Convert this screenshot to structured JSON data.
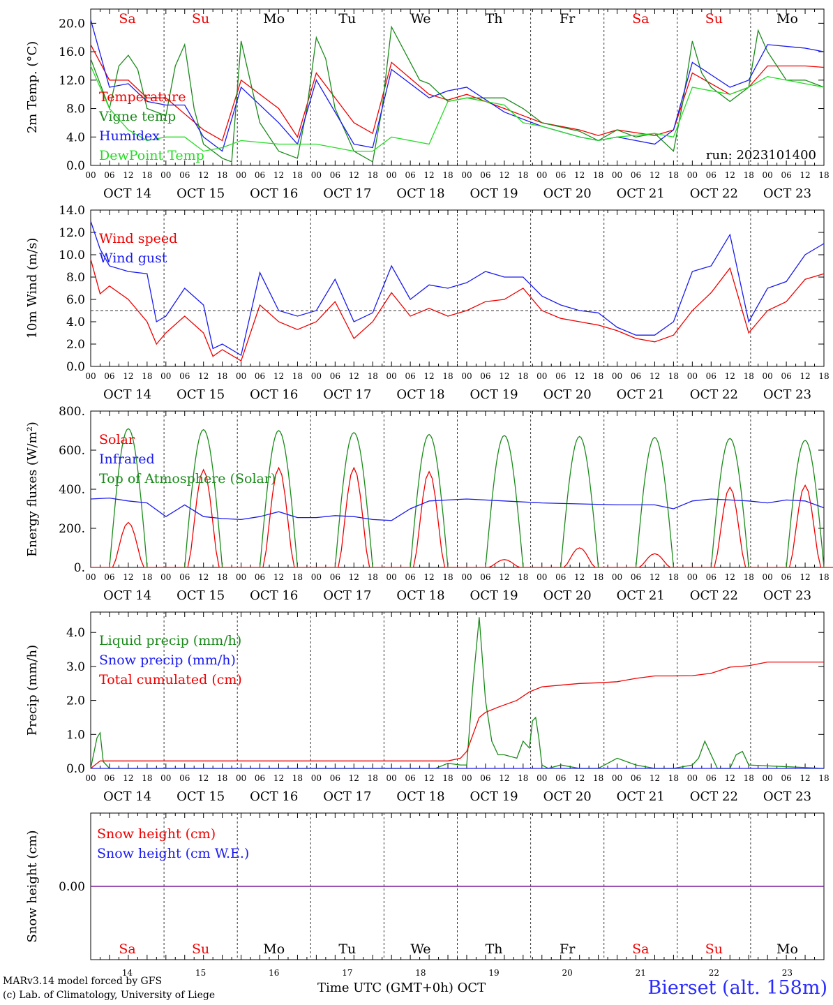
{
  "colors": {
    "red": "#ee0000",
    "green": "#1a8a1a",
    "blue": "#1a1aee",
    "lightgreen": "#22dd22",
    "purple": "#7a1a9a",
    "weekend": "#ee0000",
    "station": "#2b2bff"
  },
  "days": [
    "OCT 14",
    "OCT 15",
    "OCT 16",
    "OCT 17",
    "OCT 18",
    "OCT 19",
    "OCT 20",
    "OCT 21",
    "OCT 22",
    "OCT 23"
  ],
  "weekdays": [
    {
      "label": "Sa",
      "weekend": true
    },
    {
      "label": "Su",
      "weekend": true
    },
    {
      "label": "Mo",
      "weekend": false
    },
    {
      "label": "Tu",
      "weekend": false
    },
    {
      "label": "We",
      "weekend": false
    },
    {
      "label": "Th",
      "weekend": false
    },
    {
      "label": "Fr",
      "weekend": false
    },
    {
      "label": "Sa",
      "weekend": true
    },
    {
      "label": "Su",
      "weekend": true
    },
    {
      "label": "Mo",
      "weekend": false
    }
  ],
  "hour_ticks": [
    "00",
    "06",
    "12",
    "18"
  ],
  "footer_day_numbers": [
    "14",
    "15",
    "16",
    "17",
    "18",
    "19",
    "20",
    "21",
    "22",
    "23"
  ],
  "footer": {
    "credit1": "MARv3.14 model forced by GFS",
    "credit2": "(c) Lab. of Climatology, University of Liege",
    "xtitle": "Time UTC (GMT+0h) OCT",
    "station": "Bierset (alt. 158m)"
  },
  "chart_data": [
    {
      "type": "line",
      "ylabel": "2m Temp. (°C)",
      "ylim": [
        0,
        22
      ],
      "yticks": [
        "0.0",
        "4.0",
        "8.0",
        "12.0",
        "16.0",
        "20.0"
      ],
      "annotation": "run: 2023101400",
      "x_hours_start": 0,
      "series": [
        {
          "name": "Temperature",
          "color": "red",
          "x": [
            0,
            6,
            12,
            18,
            24,
            36,
            42,
            48,
            60,
            66,
            72,
            84,
            90,
            96,
            108,
            114,
            120,
            132,
            138,
            144,
            156,
            162,
            168,
            180,
            186,
            192,
            204,
            210,
            216,
            228,
            234
          ],
          "values": [
            17.0,
            12.0,
            12.0,
            9.5,
            9.5,
            5.0,
            3.5,
            12.0,
            8.0,
            4.0,
            13.0,
            6.0,
            4.5,
            14.5,
            10.0,
            9.2,
            10.0,
            8.0,
            7.0,
            6.0,
            5.0,
            4.2,
            5.0,
            4.2,
            5.0,
            13.0,
            10.0,
            11.0,
            14.0,
            14.0,
            13.8
          ]
        },
        {
          "name": "Vigne temp",
          "color": "green",
          "x": [
            0,
            6,
            9,
            12,
            15,
            18,
            24,
            27,
            30,
            33,
            36,
            42,
            45,
            48,
            54,
            60,
            66,
            69,
            72,
            75,
            78,
            84,
            90,
            93,
            96,
            105,
            108,
            114,
            120,
            132,
            138,
            144,
            156,
            162,
            168,
            174,
            180,
            186,
            189,
            192,
            195,
            198,
            204,
            210,
            213,
            216,
            222,
            228,
            234
          ],
          "values": [
            15.0,
            8.0,
            14.0,
            15.5,
            13.5,
            8.0,
            7.0,
            14.0,
            17.0,
            8.0,
            3.0,
            1.0,
            0.5,
            17.5,
            6.0,
            2.0,
            1.0,
            8.0,
            18.0,
            15.0,
            8.0,
            2.0,
            0.5,
            8.0,
            19.5,
            12.0,
            11.5,
            9.0,
            9.5,
            9.5,
            8.0,
            6.0,
            4.8,
            3.5,
            5.0,
            4.0,
            4.5,
            2.0,
            9.0,
            17.5,
            13.0,
            11.0,
            9.0,
            11.0,
            19.0,
            16.0,
            12.0,
            12.0,
            11.0
          ]
        },
        {
          "name": "Humidex",
          "color": "blue",
          "x": [
            0,
            6,
            12,
            18,
            24,
            30,
            36,
            42,
            48,
            60,
            66,
            72,
            84,
            90,
            96,
            108,
            114,
            120,
            132,
            138,
            144,
            156,
            162,
            168,
            180,
            186,
            192,
            204,
            210,
            216,
            228,
            234
          ],
          "values": [
            20.5,
            11.0,
            11.5,
            9.0,
            8.5,
            8.5,
            4.0,
            2.0,
            11.0,
            6.0,
            3.0,
            12.0,
            3.0,
            2.5,
            13.5,
            9.5,
            10.5,
            11.0,
            7.5,
            6.5,
            5.5,
            4.0,
            3.5,
            4.0,
            3.0,
            5.0,
            14.5,
            11.0,
            12.0,
            17.0,
            16.5,
            16.0
          ]
        },
        {
          "name": "DewPoint Temp",
          "color": "lightgreen",
          "x": [
            0,
            6,
            12,
            18,
            24,
            30,
            36,
            42,
            48,
            60,
            66,
            72,
            84,
            90,
            96,
            108,
            114,
            120,
            132,
            138,
            144,
            156,
            162,
            168,
            180,
            186,
            192,
            204,
            210,
            216,
            228,
            234
          ],
          "values": [
            14.0,
            8.0,
            5.0,
            3.5,
            4.0,
            4.0,
            2.0,
            2.5,
            3.5,
            3.0,
            3.0,
            3.0,
            2.0,
            2.0,
            4.0,
            3.0,
            9.0,
            9.5,
            8.5,
            6.0,
            5.5,
            4.0,
            3.5,
            4.0,
            4.5,
            4.0,
            11.0,
            10.0,
            11.0,
            12.5,
            11.5,
            11.0
          ]
        }
      ]
    },
    {
      "type": "line",
      "ylabel": "10m Wind (m/s)",
      "ylim": [
        0,
        14
      ],
      "yticks": [
        "0.0",
        "2.0",
        "4.0",
        "6.0",
        "8.0",
        "10.0",
        "12.0",
        "14.0"
      ],
      "hline": 5.0,
      "series": [
        {
          "name": "Wind speed",
          "color": "red",
          "x": [
            0,
            3,
            6,
            12,
            18,
            21,
            24,
            30,
            36,
            39,
            42,
            48,
            54,
            60,
            66,
            72,
            78,
            84,
            90,
            96,
            102,
            108,
            114,
            120,
            126,
            132,
            138,
            144,
            150,
            156,
            162,
            168,
            174,
            180,
            186,
            192,
            198,
            204,
            210,
            216,
            222,
            228,
            234
          ],
          "values": [
            9.6,
            6.5,
            7.2,
            6.0,
            4.0,
            2.0,
            3.0,
            4.5,
            3.0,
            0.9,
            1.5,
            0.5,
            5.5,
            4.0,
            3.3,
            4.0,
            5.8,
            2.5,
            4.0,
            6.6,
            4.5,
            5.2,
            4.5,
            5.0,
            5.8,
            6.0,
            7.0,
            5.0,
            4.3,
            4.0,
            3.7,
            3.2,
            2.5,
            2.2,
            2.8,
            5.0,
            6.6,
            8.8,
            3.0,
            5.0,
            5.8,
            7.8,
            8.3
          ]
        },
        {
          "name": "Wind gust",
          "color": "blue",
          "x": [
            0,
            3,
            6,
            12,
            18,
            21,
            24,
            30,
            36,
            39,
            42,
            48,
            54,
            60,
            66,
            72,
            78,
            84,
            90,
            96,
            102,
            108,
            114,
            120,
            126,
            132,
            138,
            144,
            150,
            156,
            162,
            168,
            174,
            180,
            186,
            192,
            198,
            204,
            210,
            216,
            222,
            228,
            234
          ],
          "values": [
            13.0,
            10.5,
            9.0,
            8.5,
            8.3,
            4.0,
            4.5,
            7.0,
            5.5,
            1.6,
            2.0,
            1.0,
            8.4,
            5.0,
            4.5,
            5.0,
            7.8,
            4.0,
            4.8,
            9.0,
            6.0,
            7.3,
            7.0,
            7.5,
            8.5,
            8.0,
            8.0,
            6.3,
            5.5,
            5.0,
            4.8,
            3.5,
            2.8,
            2.8,
            4.0,
            8.5,
            9.0,
            11.8,
            4.0,
            7.0,
            7.6,
            10.0,
            11.0
          ]
        }
      ]
    },
    {
      "type": "line",
      "ylabel": "Energy fluxes (W/m²)",
      "ylim": [
        0,
        800
      ],
      "yticks": [
        "0.",
        "200.",
        "400.",
        "600.",
        "800."
      ],
      "series": [
        {
          "name": "Solar",
          "color": "red",
          "peaks": [
            230,
            500,
            510,
            510,
            490,
            40,
            100,
            70,
            410,
            420
          ]
        },
        {
          "name": "Infrared",
          "color": "blue",
          "x": [
            0,
            6,
            12,
            18,
            24,
            30,
            36,
            42,
            48,
            54,
            60,
            66,
            72,
            78,
            84,
            90,
            96,
            102,
            108,
            114,
            120,
            132,
            144,
            156,
            168,
            180,
            186,
            192,
            198,
            204,
            210,
            216,
            222,
            228,
            234
          ],
          "values": [
            350,
            355,
            340,
            330,
            260,
            320,
            260,
            250,
            245,
            260,
            285,
            255,
            255,
            265,
            260,
            245,
            240,
            300,
            340,
            345,
            350,
            340,
            330,
            325,
            320,
            320,
            300,
            340,
            350,
            345,
            340,
            330,
            345,
            340,
            305
          ]
        },
        {
          "name": "Top of Atmosphere (Solar)",
          "color": "green",
          "peaks": [
            710,
            705,
            700,
            690,
            680,
            675,
            670,
            665,
            660,
            650
          ]
        }
      ]
    },
    {
      "type": "line",
      "ylabel": "Precip (mm/h)",
      "ylim": [
        0,
        4.6
      ],
      "yticks": [
        "0.0",
        "1.0",
        "2.0",
        "3.0",
        "4.0"
      ],
      "series": [
        {
          "name": "Liquid precip (mm/h)",
          "color": "green",
          "x": [
            0,
            2,
            3,
            4,
            6,
            110,
            114,
            118,
            120,
            122,
            124,
            126,
            128,
            130,
            132,
            136,
            138,
            140,
            141,
            142,
            143,
            144,
            146,
            150,
            156,
            162,
            168,
            174,
            180,
            186,
            192,
            194,
            196,
            198,
            200,
            204,
            206,
            208,
            210,
            234
          ],
          "values": [
            0,
            0.9,
            1.05,
            0.2,
            0,
            0,
            0.15,
            0.1,
            0.1,
            2.5,
            4.45,
            2.0,
            0.8,
            0.4,
            0.4,
            0.3,
            0.8,
            0.6,
            1.4,
            1.5,
            0.9,
            0.1,
            0,
            0.1,
            0,
            0,
            0.3,
            0.1,
            0,
            0,
            0.1,
            0.3,
            0.8,
            0.4,
            0,
            0,
            0.4,
            0.5,
            0.1,
            0
          ]
        },
        {
          "name": "Snow precip (mm/h)",
          "color": "blue",
          "x": [
            0,
            234
          ],
          "values": [
            0,
            0
          ]
        },
        {
          "name": "Total cumulated (cm)",
          "color": "red",
          "x": [
            0,
            3,
            24,
            48,
            72,
            96,
            114,
            118,
            120,
            122,
            124,
            126,
            130,
            136,
            140,
            144,
            150,
            156,
            162,
            168,
            174,
            180,
            186,
            192,
            198,
            204,
            210,
            216,
            234
          ],
          "values": [
            0,
            0.22,
            0.22,
            0.22,
            0.22,
            0.22,
            0.22,
            0.3,
            0.5,
            1.0,
            1.5,
            1.65,
            1.8,
            2.0,
            2.25,
            2.4,
            2.45,
            2.5,
            2.52,
            2.55,
            2.65,
            2.72,
            2.72,
            2.73,
            2.8,
            2.98,
            3.02,
            3.13,
            3.13
          ]
        }
      ]
    },
    {
      "type": "line",
      "ylabel": "Snow height (cm)",
      "yticks": [
        "0.00"
      ],
      "series": [
        {
          "name": "Snow height (cm)",
          "color": "red",
          "x": [
            0,
            234
          ],
          "values": [
            0,
            0
          ]
        },
        {
          "name": "Snow height (cm W.E.)",
          "color": "blue",
          "x": [
            0,
            234
          ],
          "values": [
            0,
            0
          ]
        }
      ]
    }
  ]
}
